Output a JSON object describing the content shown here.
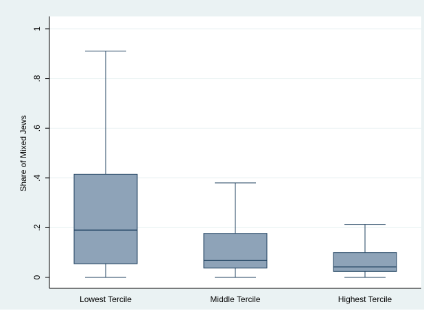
{
  "chart_data": {
    "type": "box",
    "title": "",
    "xlabel": "",
    "ylabel": "Share of Mixed Jews",
    "ylim": [
      0,
      1
    ],
    "yticks": [
      0,
      0.2,
      0.4,
      0.6,
      0.8,
      1
    ],
    "ytick_labels": [
      "0",
      ".2",
      ".4",
      ".6",
      ".8",
      "1"
    ],
    "grid": true,
    "legend": "none",
    "categories": [
      "Lowest Tercile",
      "Middle Tercile",
      "Highest Tercile"
    ],
    "boxes": [
      {
        "category": "Lowest Tercile",
        "min": 0.0,
        "q1": 0.055,
        "median": 0.19,
        "q3": 0.415,
        "max": 0.91
      },
      {
        "category": "Middle Tercile",
        "min": 0.0,
        "q1": 0.038,
        "median": 0.068,
        "q3": 0.177,
        "max": 0.38
      },
      {
        "category": "Highest Tercile",
        "min": 0.0,
        "q1": 0.024,
        "median": 0.042,
        "q3": 0.1,
        "max": 0.213
      }
    ],
    "colors": {
      "outer_background": "#eaf2f3",
      "plot_background": "#ffffff",
      "box_fill": "#8ea3b8",
      "box_stroke": "#1d3f5e",
      "grid": "#eaf2f3",
      "axis": "#000000"
    }
  }
}
